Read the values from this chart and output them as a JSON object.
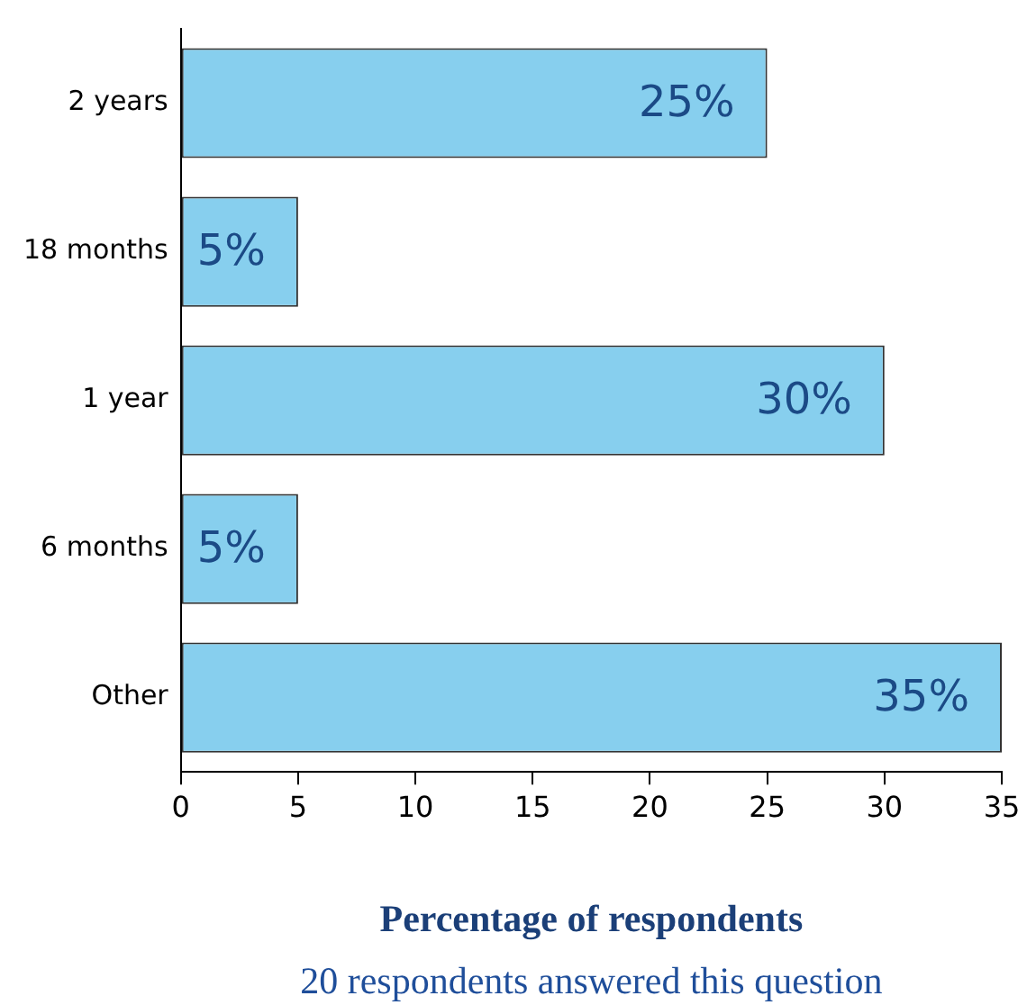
{
  "chart_data": {
    "type": "bar",
    "orientation": "horizontal",
    "categories": [
      "2 years",
      "18 months",
      "1 year",
      "6 months",
      "Other"
    ],
    "values": [
      25,
      5,
      30,
      5,
      35
    ],
    "value_labels": [
      "25%",
      "5%",
      "30%",
      "5%",
      "35%"
    ],
    "color": "#87cfee",
    "xlim": [
      0,
      35
    ],
    "xticks": [
      0,
      5,
      10,
      15,
      20,
      25,
      30,
      35
    ],
    "grid": false,
    "legend": false,
    "xlabel": "Percentage of respondents",
    "annotations": [
      "20 respondents answered this question"
    ]
  }
}
